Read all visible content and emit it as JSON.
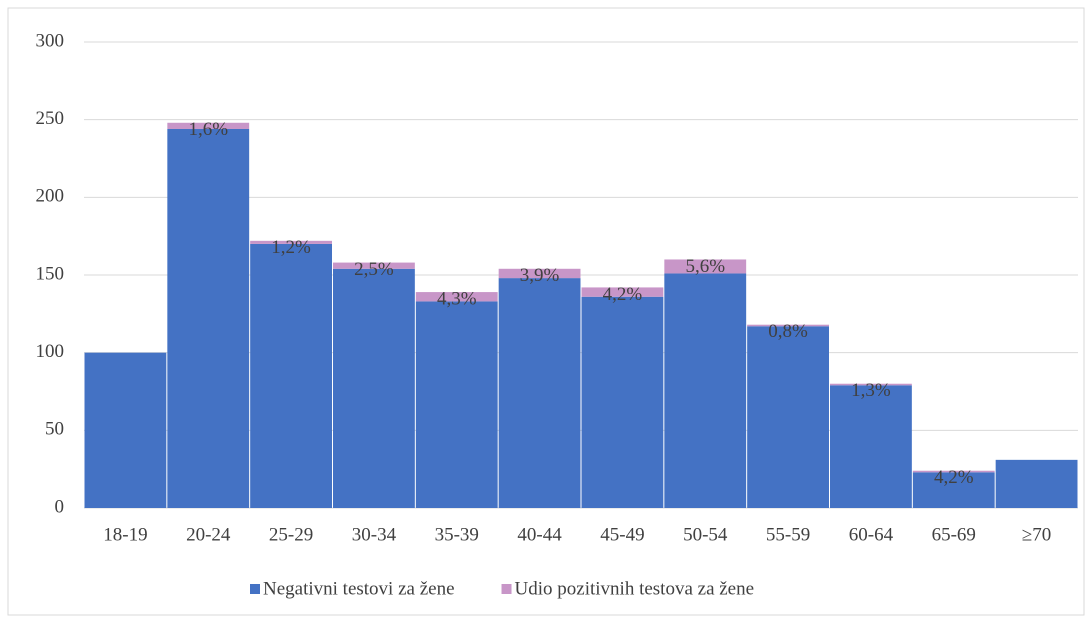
{
  "chart_data": {
    "type": "stacked_bar",
    "categories": [
      "18-19",
      "20-24",
      "25-29",
      "30-34",
      "35-39",
      "40-44",
      "45-49",
      "50-54",
      "55-59",
      "60-64",
      "65-69",
      "≥70"
    ],
    "series": [
      {
        "name": "Negativni testovi za žene",
        "color": "#4472c4",
        "values": [
          100,
          244,
          170,
          154,
          133,
          148,
          136,
          151,
          117,
          79,
          23,
          31
        ]
      },
      {
        "name": "Udio pozitivnih testova za žene",
        "color": "#c896c8",
        "values": [
          0,
          4,
          2,
          4,
          6,
          6,
          6,
          9,
          1,
          1,
          1,
          0
        ]
      }
    ],
    "percent_labels": [
      null,
      "1,6%",
      "1,2%",
      "2,5%",
      "4,3%",
      "3,9%",
      "4,2%",
      "5,6%",
      "0,8%",
      "1,3%",
      "4,2%",
      null
    ],
    "ylim": [
      0,
      300
    ],
    "yticks": [
      0,
      50,
      100,
      150,
      200,
      250,
      300
    ],
    "grid": true,
    "legend": "bottom"
  }
}
